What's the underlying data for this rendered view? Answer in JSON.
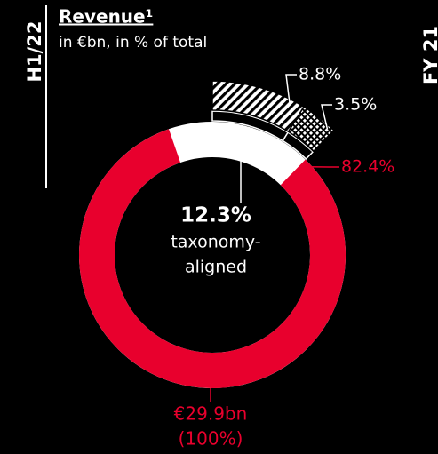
{
  "chart_data": {
    "type": "donut",
    "title": "Revenue¹",
    "subtitle": "in €bn, in % of total",
    "period": "H1/22",
    "other_period": "FY 21",
    "values": [
      8.8,
      3.5,
      82.4
    ],
    "value_labels": [
      "8.8%",
      "3.5%",
      "82.4%"
    ],
    "colors": [
      "hatch",
      "crosshatch",
      "#e8002d"
    ],
    "center_value": "12.3%",
    "center_text": [
      "taxonomy-",
      "aligned"
    ],
    "total_label": [
      "€29.9bn",
      "(100%)"
    ]
  }
}
